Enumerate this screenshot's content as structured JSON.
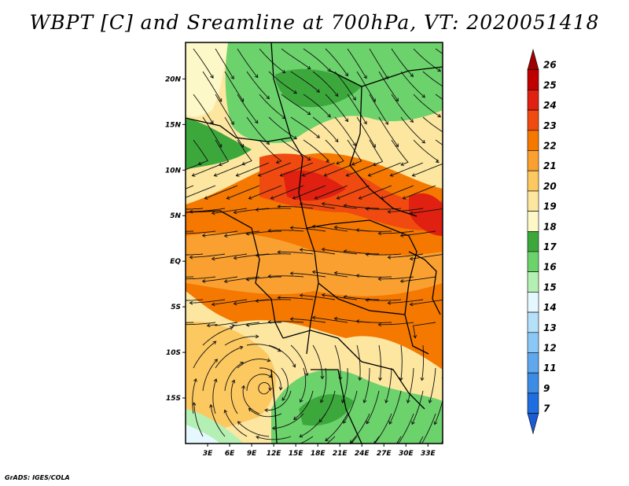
{
  "title": "WBPT [C] and Sreamline at 700hPa, VT: 2020051418",
  "credit": "GrADS: IGES/COLA",
  "map": {
    "lat_labels": [
      "20N",
      "15N",
      "10N",
      "5N",
      "EQ",
      "5S",
      "10S",
      "15S"
    ],
    "lon_labels": [
      "3E",
      "6E",
      "9E",
      "12E",
      "15E",
      "18E",
      "21E",
      "24E",
      "27E",
      "30E",
      "33E"
    ],
    "lon_range": [
      0,
      35
    ],
    "lat_range": [
      -20,
      24
    ]
  },
  "colorbar": {
    "labels": [
      "26",
      "25",
      "24",
      "23",
      "22",
      "21",
      "20",
      "19",
      "18",
      "17",
      "16",
      "15",
      "14",
      "13",
      "12",
      "11",
      "9",
      "7"
    ],
    "colors": [
      "#a00000",
      "#c00000",
      "#e02010",
      "#f04a10",
      "#f57800",
      "#faa030",
      "#fcc860",
      "#fce6a0",
      "#fdf8c8",
      "#3ca83c",
      "#6cd26c",
      "#b4f0b4",
      "#e6f8ff",
      "#b4e0fa",
      "#8cc8f5",
      "#60a8ee",
      "#3c8ce6",
      "#1e6ee0",
      "#1a5ad2"
    ]
  }
}
